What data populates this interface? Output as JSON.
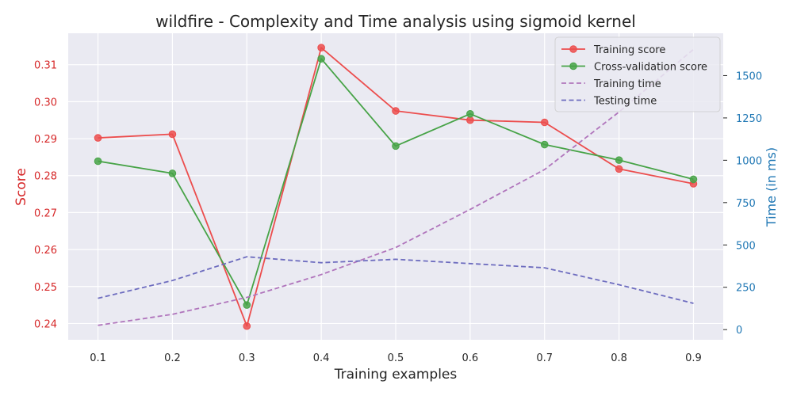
{
  "chart_data": {
    "type": "line",
    "title": "wildfire - Complexity and Time analysis using sigmoid kernel",
    "xlabel": "Training examples",
    "ylabel_left": "Score",
    "ylabel_right": "Time (in ms)",
    "x": [
      0.1,
      0.2,
      0.3,
      0.4,
      0.5,
      0.6,
      0.7,
      0.8,
      0.9
    ],
    "x_ticks": [
      "0.1",
      "0.2",
      "0.3",
      "0.4",
      "0.5",
      "0.6",
      "0.7",
      "0.8",
      "0.9"
    ],
    "y_left_ticks": [
      "0.24",
      "0.25",
      "0.26",
      "0.27",
      "0.28",
      "0.29",
      "0.30",
      "0.31"
    ],
    "y_right_ticks": [
      "0",
      "250",
      "500",
      "750",
      "1000",
      "1250",
      "1500"
    ],
    "ylim_left": [
      0.2356,
      0.3185
    ],
    "ylim_right": [
      -60,
      1750
    ],
    "grid": true,
    "legend_position": "top-right",
    "colors": {
      "background": "#eaeaf2",
      "grid": "#ffffff",
      "left_axis": "#d62728",
      "right_axis": "#1f77b4",
      "text": "#262626"
    },
    "series": [
      {
        "name": "Training score",
        "axis": "left",
        "style": "solid",
        "marker": true,
        "color": "#ec4d4d",
        "values": [
          0.2902,
          0.2912,
          0.2393,
          0.3146,
          0.2975,
          0.295,
          0.2944,
          0.2818,
          0.2778
        ]
      },
      {
        "name": "Cross-validation score",
        "axis": "left",
        "style": "solid",
        "marker": true,
        "color": "#47a347",
        "values": [
          0.2839,
          0.2806,
          0.245,
          0.3116,
          0.288,
          0.2967,
          0.2884,
          0.2842,
          0.279
        ]
      },
      {
        "name": "Training time",
        "axis": "right",
        "style": "dashed",
        "marker": false,
        "color": "#b075bc",
        "values": [
          25,
          90,
          190,
          325,
          485,
          710,
          945,
          1285,
          1655
        ]
      },
      {
        "name": "Testing time",
        "axis": "right",
        "style": "dashed",
        "marker": false,
        "color": "#6d6cbf",
        "values": [
          185,
          290,
          430,
          395,
          415,
          390,
          365,
          265,
          155
        ]
      }
    ]
  }
}
